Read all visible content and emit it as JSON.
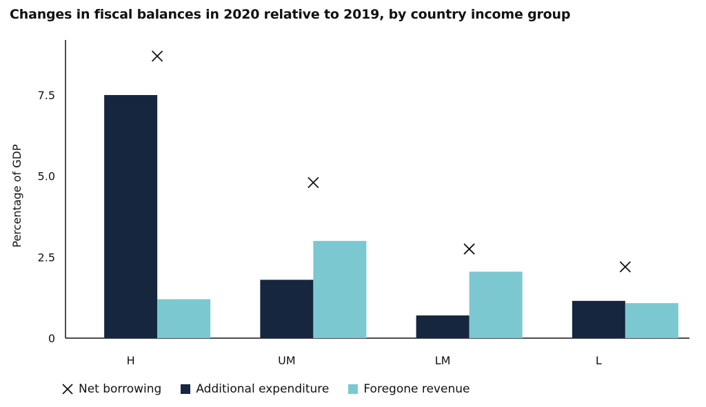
{
  "chart_data": {
    "type": "bar",
    "title": "Changes in fiscal balances in 2020 relative to 2019, by country income group",
    "xlabel": "",
    "ylabel": "Percentage of GDP",
    "ylim": [
      0,
      9.2
    ],
    "yticks": [
      0,
      2.5,
      5.0,
      7.5
    ],
    "ytick_labels": [
      "0",
      "2.5",
      "5.0",
      "7.5"
    ],
    "categories": [
      "H",
      "UM",
      "LM",
      "L"
    ],
    "series": [
      {
        "name": "Additional expenditure",
        "kind": "bar",
        "color": "#16263e",
        "values": [
          7.5,
          1.8,
          0.7,
          1.15
        ]
      },
      {
        "name": "Foregone revenue",
        "kind": "bar",
        "color": "#7bc8d0",
        "values": [
          1.2,
          3.0,
          2.05,
          1.08
        ]
      },
      {
        "name": "Net borrowing",
        "kind": "marker",
        "color": "#111111",
        "values": [
          8.7,
          4.8,
          2.75,
          2.2
        ]
      }
    ],
    "legend": [
      "Net borrowing",
      "Additional expenditure",
      "Foregone revenue"
    ],
    "grid": false
  }
}
